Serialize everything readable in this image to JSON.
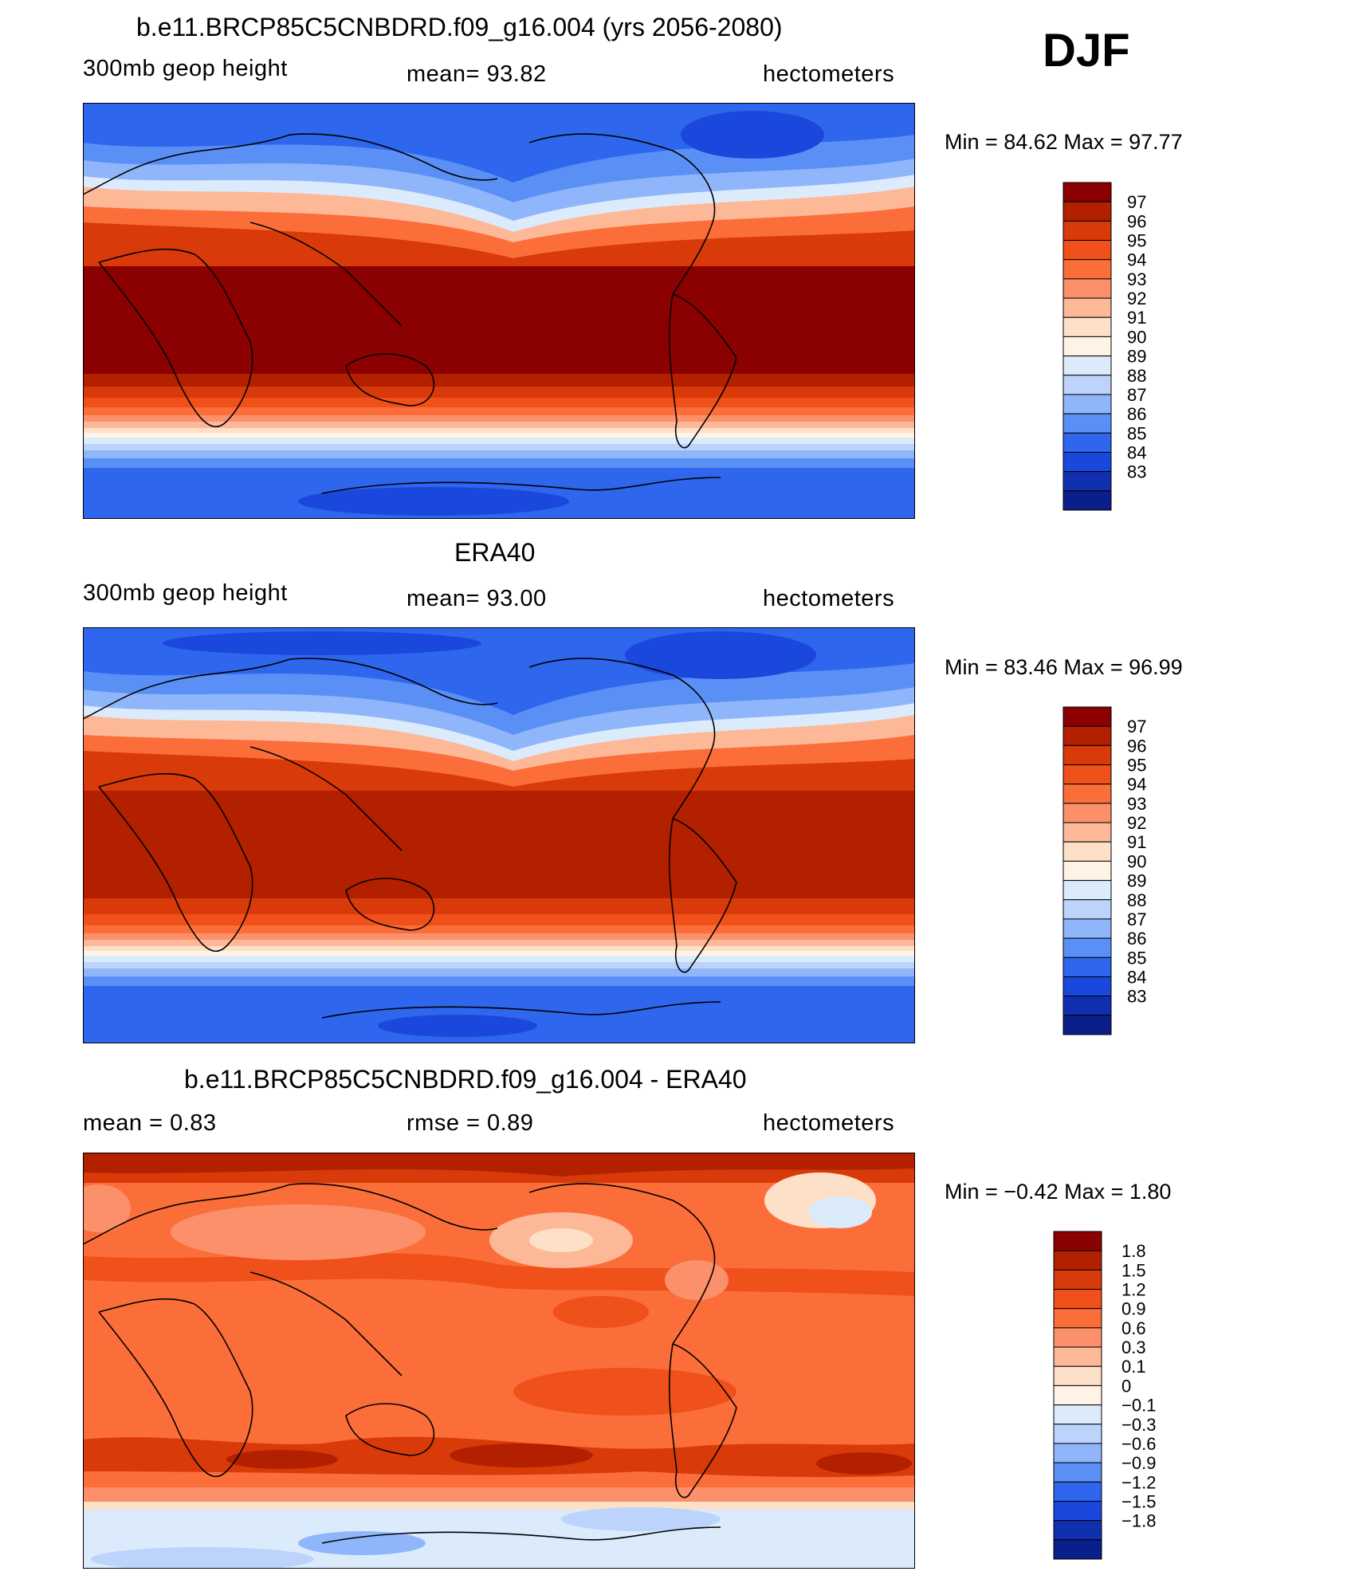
{
  "season": "DJF",
  "panels": [
    {
      "title": "b.e11.BRCP85C5CNBDRD.f09_g16.004 (yrs 2056-2080)",
      "left_label": "300mb  geop  height",
      "center_label": "mean=   93.82",
      "right_label": "hectometers",
      "minmax": "Min =   84.62  Max =   97.77",
      "colorbar_labels": [
        "97",
        "96",
        "95",
        "94",
        "93",
        "92",
        "91",
        "90",
        "89",
        "88",
        "87",
        "86",
        "85",
        "84",
        "83"
      ],
      "colorbar_colors": [
        "#8b0000",
        "#b22000",
        "#d83a0a",
        "#f0501a",
        "#fb6e3a",
        "#fc906a",
        "#fdb898",
        "#fde0c8",
        "#fff3e6",
        "#dcebfc",
        "#bcd4fb",
        "#8fb6fa",
        "#5a90f6",
        "#2f66ee",
        "#1a48dc",
        "#1030b0",
        "#0a1f8c"
      ]
    },
    {
      "title": "ERA40",
      "left_label": "300mb  geop  height",
      "center_label": "mean=   93.00",
      "right_label": "hectometers",
      "minmax": "Min =   83.46  Max =   96.99",
      "colorbar_labels": [
        "97",
        "96",
        "95",
        "94",
        "93",
        "92",
        "91",
        "90",
        "89",
        "88",
        "87",
        "86",
        "85",
        "84",
        "83"
      ],
      "colorbar_colors": [
        "#8b0000",
        "#b22000",
        "#d83a0a",
        "#f0501a",
        "#fb6e3a",
        "#fc906a",
        "#fdb898",
        "#fde0c8",
        "#fff3e6",
        "#dcebfc",
        "#bcd4fb",
        "#8fb6fa",
        "#5a90f6",
        "#2f66ee",
        "#1a48dc",
        "#1030b0",
        "#0a1f8c"
      ]
    },
    {
      "title": "b.e11.BRCP85C5CNBDRD.f09_g16.004 - ERA40",
      "left_label": "mean =     0.83",
      "center_label": "rmse =     0.89",
      "right_label": "hectometers",
      "minmax": "Min =   −0.42  Max =     1.80",
      "colorbar_labels": [
        "1.8",
        "1.5",
        "1.2",
        "0.9",
        "0.6",
        "0.3",
        "0.1",
        "0",
        "−0.1",
        "−0.3",
        "−0.6",
        "−0.9",
        "−1.2",
        "−1.5",
        "−1.8"
      ],
      "colorbar_colors": [
        "#8b0000",
        "#b22000",
        "#d83a0a",
        "#f0501a",
        "#fb6e3a",
        "#fc906a",
        "#fdb898",
        "#fde0c8",
        "#fff3e6",
        "#dcebfc",
        "#bcd4fb",
        "#8fb6fa",
        "#5a90f6",
        "#2f66ee",
        "#1a48dc",
        "#1030b0",
        "#0a1f8c"
      ]
    }
  ]
}
